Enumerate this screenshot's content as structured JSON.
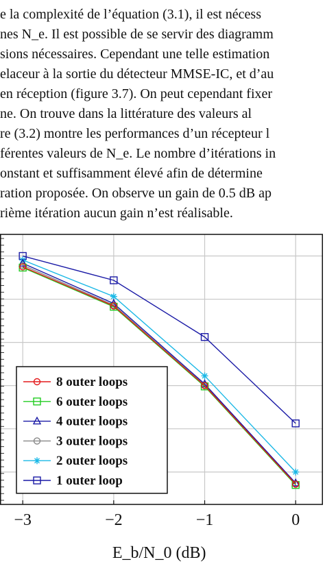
{
  "text_lines": [
    "e la complexité de l’équation (3.1), il est nécess",
    "nes N_e. Il est possible de se servir des diagramm",
    "sions nécessaires. Cependant une telle estimation",
    "elaceur à la sortie du détecteur MMSE-IC, et d’au",
    "en réception (figure 3.7). On peut cependant fixer",
    "ne. On trouve dans la littérature des valeurs al",
    "re (3.2) montre les performances d’un récepteur l",
    "férentes valeurs de N_e. Le nombre d’itérations in",
    "onstant et suffisamment élevé afin de détermine",
    "ration proposée. On observe un gain de 0.5 dB ap",
    "rième itération aucun gain n’est réalisable."
  ],
  "chart_data": {
    "type": "line",
    "x": [
      -3,
      -2,
      -1,
      0
    ],
    "xlabel": "E_b/N_0 (dB)",
    "ylabel": "",
    "xlim": [
      -3.25,
      0.3
    ],
    "ylim": [
      0,
      1
    ],
    "grid": true,
    "legend_position": "bottom-left",
    "xticks": [
      "−3",
      "−2",
      "−1",
      "0"
    ],
    "series": [
      {
        "name": "8 outer loops",
        "color": "#e41a1c",
        "marker": "circle",
        "values": [
          0.88,
          0.735,
          0.44,
          0.075
        ]
      },
      {
        "name": "6 outer loops",
        "color": "#22cc22",
        "marker": "square",
        "values": [
          0.877,
          0.732,
          0.437,
          0.072
        ]
      },
      {
        "name": "4 outer loops",
        "color": "#1a1aa6",
        "marker": "triangle",
        "values": [
          0.893,
          0.744,
          0.446,
          0.079
        ]
      },
      {
        "name": "3 outer loops",
        "color": "#888888",
        "marker": "circle",
        "values": [
          0.886,
          0.738,
          0.442,
          0.076
        ]
      },
      {
        "name": "2 outer loops",
        "color": "#1ab8e6",
        "marker": "star",
        "values": [
          0.905,
          0.77,
          0.476,
          0.12
        ]
      },
      {
        "name": "1 outer loop",
        "color": "#1a1aa6",
        "marker": "square",
        "values": [
          0.92,
          0.83,
          0.62,
          0.3
        ]
      }
    ]
  }
}
